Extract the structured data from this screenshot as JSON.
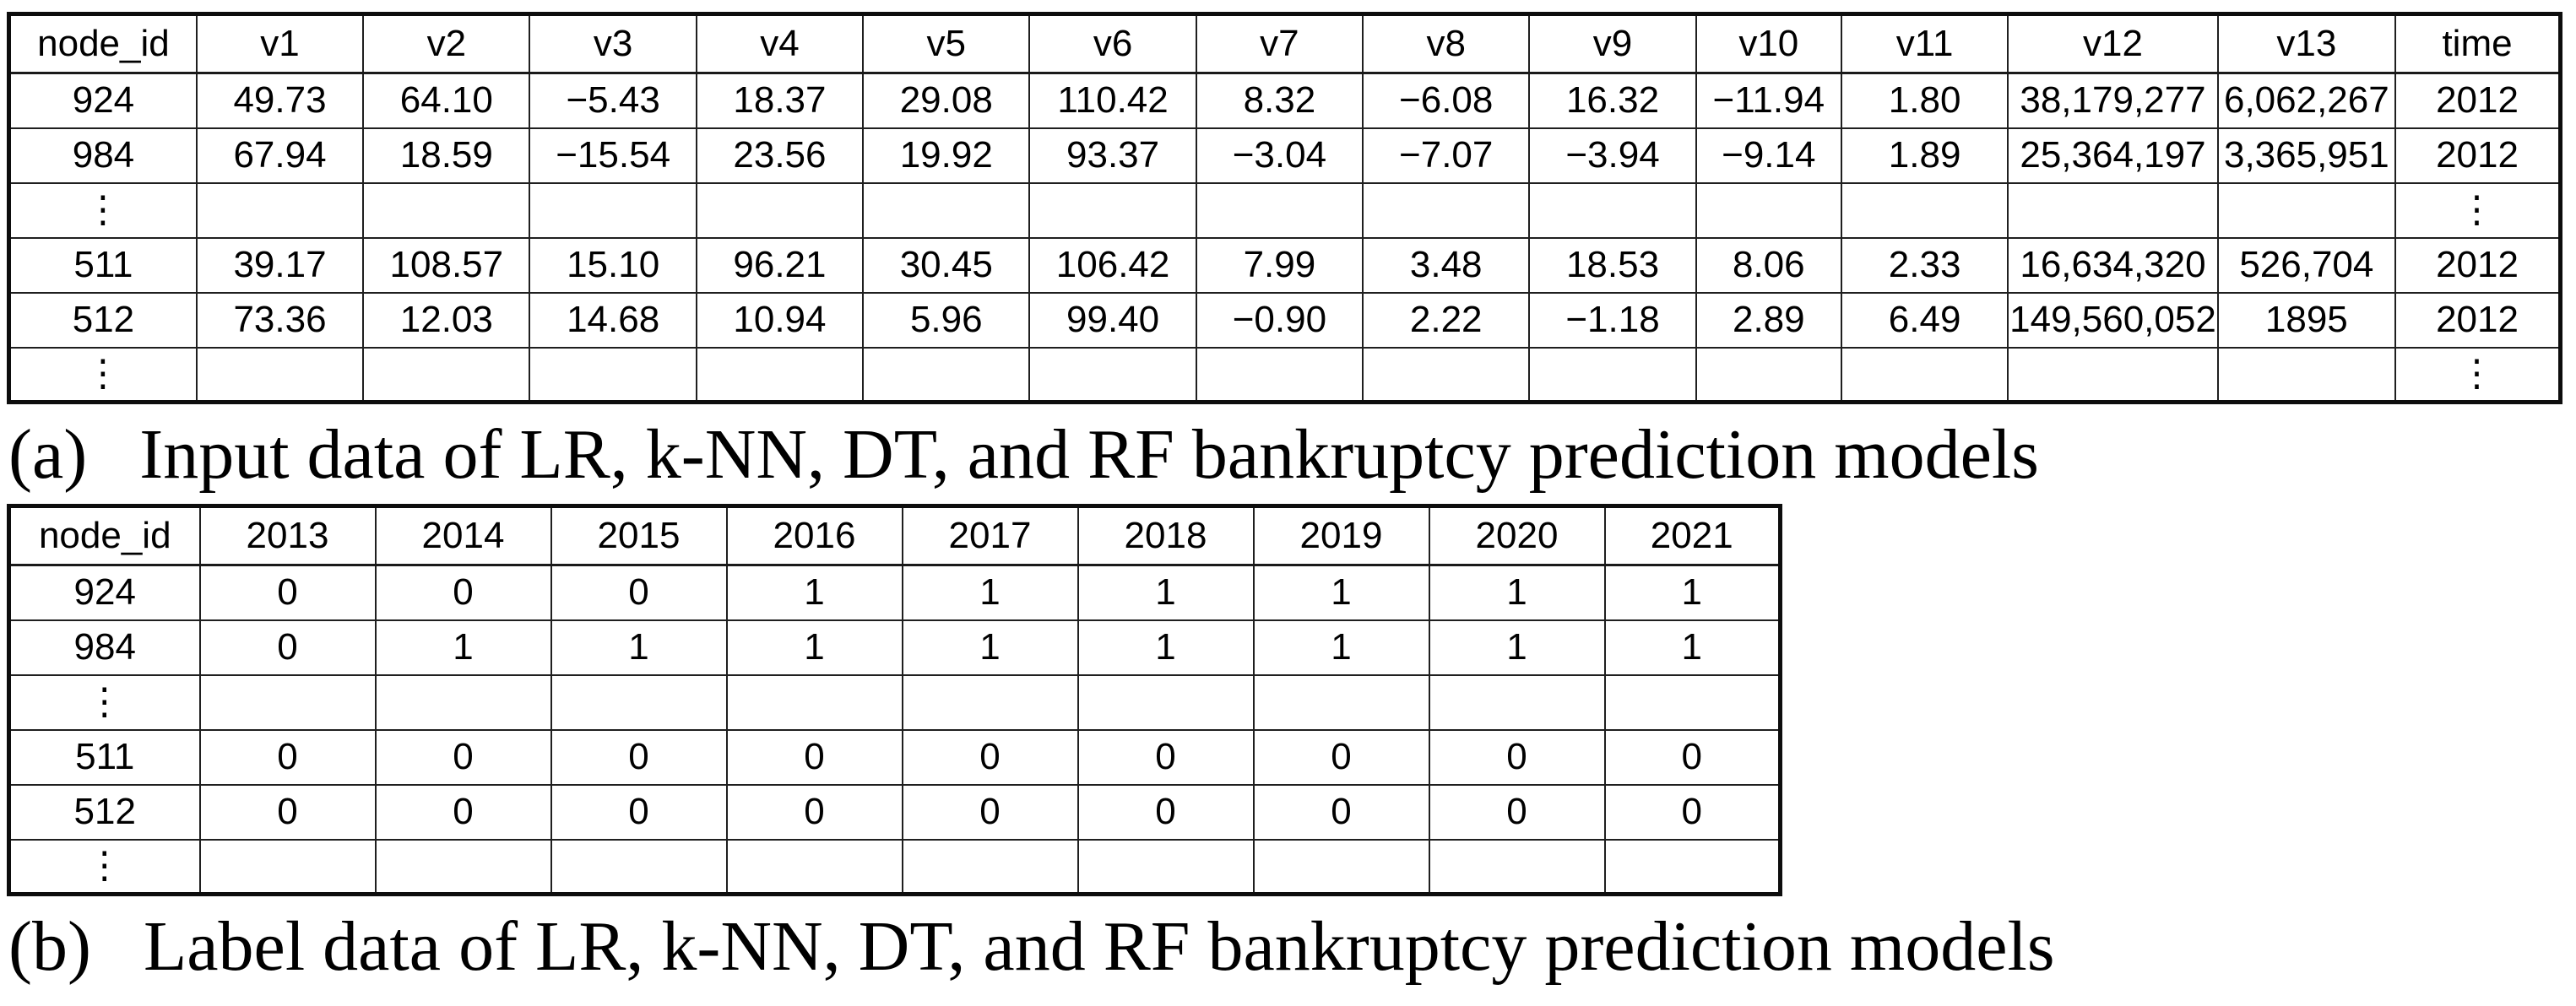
{
  "table_a": {
    "headers": [
      "node_id",
      "v1",
      "v2",
      "v3",
      "v4",
      "v5",
      "v6",
      "v7",
      "v8",
      "v9",
      "v10",
      "v11",
      "v12",
      "v13",
      "time"
    ],
    "rows": [
      [
        "924",
        "49.73",
        "64.10",
        "−5.43",
        "18.37",
        "29.08",
        "110.42",
        "8.32",
        "−6.08",
        "16.32",
        "−11.94",
        "1.80",
        "38,179,277",
        "6,062,267",
        "2012"
      ],
      [
        "984",
        "67.94",
        "18.59",
        "−15.54",
        "23.56",
        "19.92",
        "93.37",
        "−3.04",
        "−7.07",
        "−3.94",
        "−9.14",
        "1.89",
        "25,364,197",
        "3,365,951",
        "2012"
      ],
      [
        "⋮",
        "",
        "",
        "",
        "",
        "",
        "",
        "",
        "",
        "",
        "",
        "",
        "",
        "",
        "⋮"
      ],
      [
        "511",
        "39.17",
        "108.57",
        "15.10",
        "96.21",
        "30.45",
        "106.42",
        "7.99",
        "3.48",
        "18.53",
        "8.06",
        "2.33",
        "16,634,320",
        "526,704",
        "2012"
      ],
      [
        "512",
        "73.36",
        "12.03",
        "14.68",
        "10.94",
        "5.96",
        "99.40",
        "−0.90",
        "2.22",
        "−1.18",
        "2.89",
        "6.49",
        "149,560,052",
        "1895",
        "2012"
      ],
      [
        "⋮",
        "",
        "",
        "",
        "",
        "",
        "",
        "",
        "",
        "",
        "",
        "",
        "",
        "",
        "⋮"
      ]
    ],
    "caption_label": "(a)",
    "caption_text": "Input data of LR, k-NN, DT, and RF bankruptcy prediction models"
  },
  "table_b": {
    "headers": [
      "node_id",
      "2013",
      "2014",
      "2015",
      "2016",
      "2017",
      "2018",
      "2019",
      "2020",
      "2021"
    ],
    "rows": [
      [
        "924",
        "0",
        "0",
        "0",
        "1",
        "1",
        "1",
        "1",
        "1",
        "1"
      ],
      [
        "984",
        "0",
        "1",
        "1",
        "1",
        "1",
        "1",
        "1",
        "1",
        "1"
      ],
      [
        "⋮",
        "",
        "",
        "",
        "",
        "",
        "",
        "",
        "",
        ""
      ],
      [
        "511",
        "0",
        "0",
        "0",
        "0",
        "0",
        "0",
        "0",
        "0",
        "0"
      ],
      [
        "512",
        "0",
        "0",
        "0",
        "0",
        "0",
        "0",
        "0",
        "0",
        "0"
      ],
      [
        "⋮",
        "",
        "",
        "",
        "",
        "",
        "",
        "",
        "",
        ""
      ]
    ],
    "caption_label": "(b)",
    "caption_text": "Label data of LR, k-NN, DT, and RF bankruptcy prediction models"
  }
}
